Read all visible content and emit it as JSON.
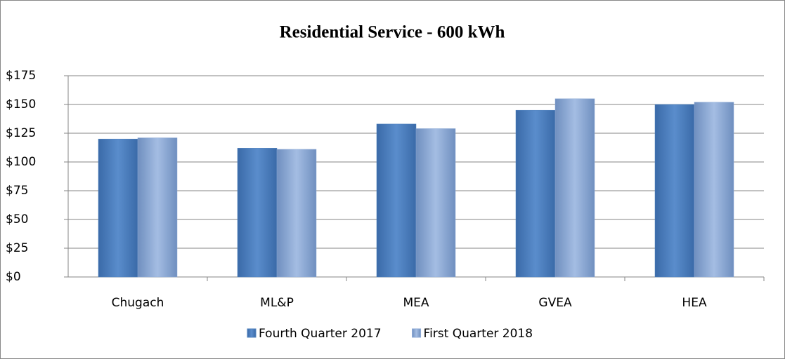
{
  "chart_data": {
    "type": "bar",
    "title": "Residential Service - 600 kWh",
    "categories": [
      "Chugach",
      "ML&P",
      "MEA",
      "GVEA",
      "HEA"
    ],
    "series": [
      {
        "name": "Fourth Quarter 2017",
        "color": "#4f81bd",
        "values": [
          120,
          112,
          133,
          145,
          150
        ]
      },
      {
        "name": "First Quarter 2018",
        "color": "#8eaad6",
        "values": [
          121,
          111,
          129,
          155,
          152
        ]
      }
    ],
    "ylim": [
      0,
      175
    ],
    "yticks": [
      {
        "value": 0,
        "label": "$0"
      },
      {
        "value": 25,
        "label": "$25"
      },
      {
        "value": 50,
        "label": "$50"
      },
      {
        "value": 75,
        "label": "$75"
      },
      {
        "value": 100,
        "label": "$100"
      },
      {
        "value": 125,
        "label": "$125"
      },
      {
        "value": 150,
        "label": "$150"
      },
      {
        "value": 175,
        "label": "$175"
      }
    ],
    "grid": true,
    "legend": "bottom"
  }
}
